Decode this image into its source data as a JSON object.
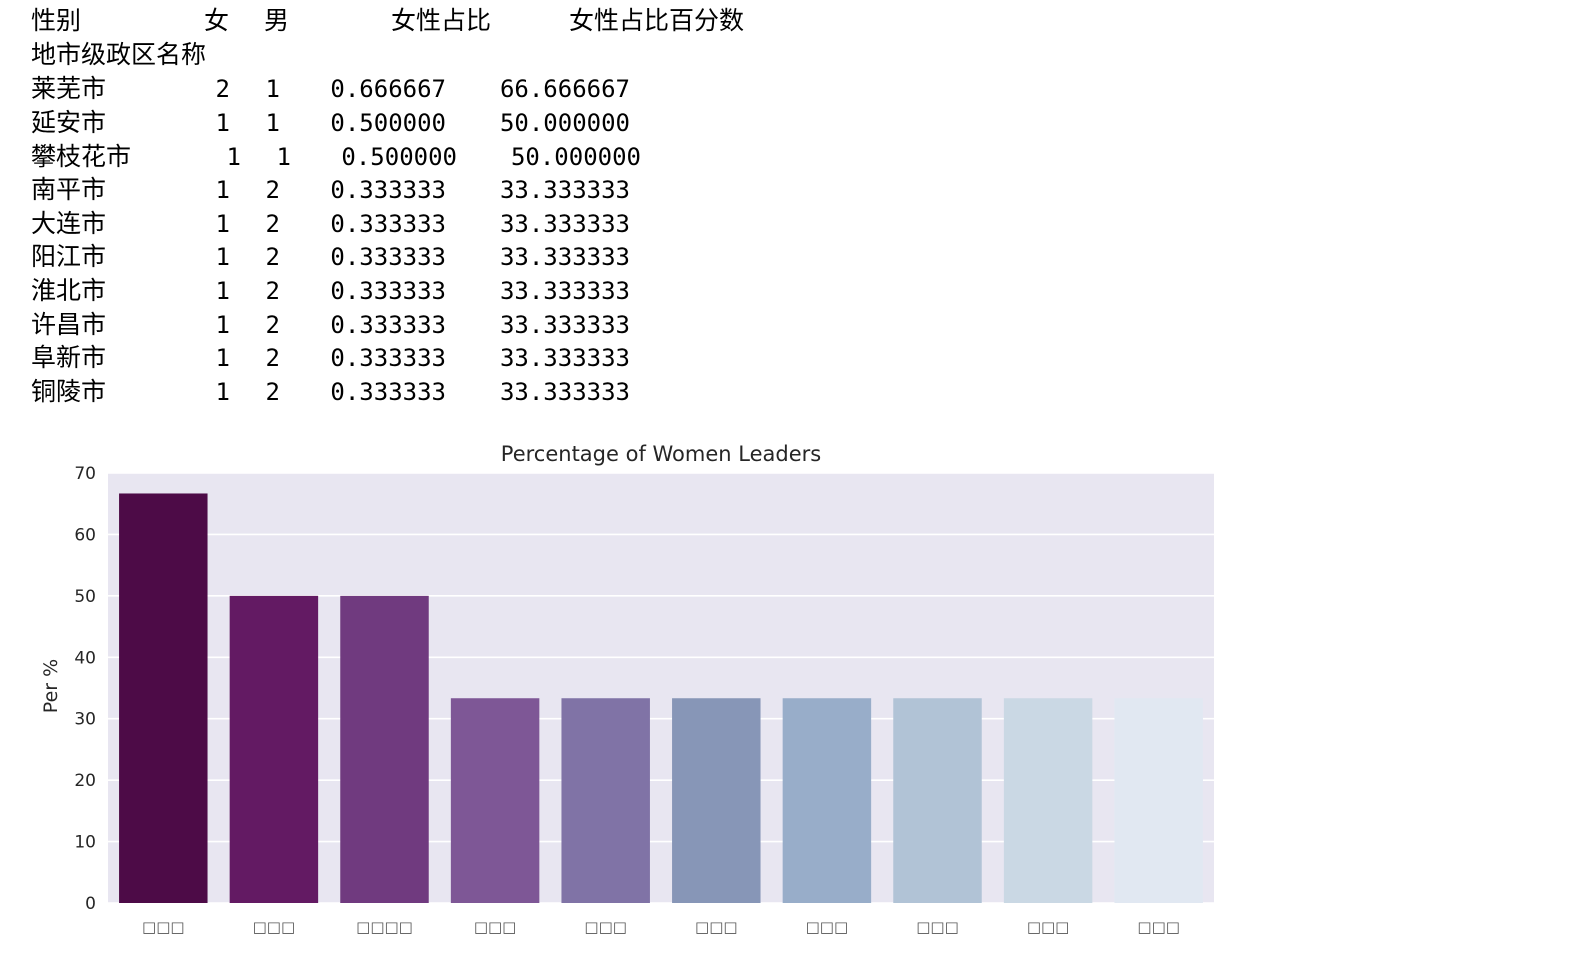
{
  "table": {
    "columns_header_label": "性别",
    "columns": [
      "女",
      "男",
      "女性占比",
      "女性占比百分数"
    ],
    "index_name": "地市级政区名称",
    "rows": [
      {
        "name": "莱芜市",
        "values": [
          "2",
          "1",
          "0.666667",
          "66.666667"
        ]
      },
      {
        "name": "延安市",
        "values": [
          "1",
          "1",
          "0.500000",
          "50.000000"
        ]
      },
      {
        "name": "攀枝花市",
        "values": [
          "1",
          "1",
          "0.500000",
          "50.000000"
        ]
      },
      {
        "name": "南平市",
        "values": [
          "1",
          "2",
          "0.333333",
          "33.333333"
        ]
      },
      {
        "name": "大连市",
        "values": [
          "1",
          "2",
          "0.333333",
          "33.333333"
        ]
      },
      {
        "name": "阳江市",
        "values": [
          "1",
          "2",
          "0.333333",
          "33.333333"
        ]
      },
      {
        "name": "淮北市",
        "values": [
          "1",
          "2",
          "0.333333",
          "33.333333"
        ]
      },
      {
        "name": "许昌市",
        "values": [
          "1",
          "2",
          "0.333333",
          "33.333333"
        ]
      },
      {
        "name": "阜新市",
        "values": [
          "1",
          "2",
          "0.333333",
          "33.333333"
        ]
      },
      {
        "name": "铜陵市",
        "values": [
          "1",
          "2",
          "0.333333",
          "33.333333"
        ]
      }
    ]
  },
  "chart_data": {
    "type": "bar",
    "title": "Percentage of Women Leaders",
    "xlabel": "",
    "ylabel": "Per %",
    "ylim": [
      0,
      70
    ],
    "yticks": [
      0,
      10,
      20,
      30,
      40,
      50,
      60,
      70
    ],
    "categories": [
      "□□□",
      "□□□",
      "□□□□",
      "□□□",
      "□□□",
      "□□□",
      "□□□",
      "□□□",
      "□□□",
      "□□□"
    ],
    "values": [
      66.666667,
      50.0,
      50.0,
      33.333333,
      33.333333,
      33.333333,
      33.333333,
      33.333333,
      33.333333,
      33.333333
    ],
    "colors": [
      "#4d0b47",
      "#631a63",
      "#703a7f",
      "#7e5796",
      "#8073a6",
      "#8796b7",
      "#98adc9",
      "#b1c3d6",
      "#cad8e4",
      "#e1e8f2"
    ],
    "background": "#e8e6f1",
    "grid": true
  }
}
